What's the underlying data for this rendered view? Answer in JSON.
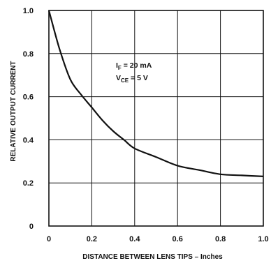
{
  "chart_data": {
    "type": "line",
    "xlabel": "DISTANCE BETWEEN LENS TIPS – Inches",
    "ylabel": "RELATIVE OUTPUT CURRENT",
    "xlim": [
      0,
      1.0
    ],
    "ylim": [
      0,
      1.0
    ],
    "x_ticks": [
      0,
      0.2,
      0.4,
      0.6,
      0.8,
      1.0
    ],
    "x_tick_labels": [
      "0",
      "0.2",
      "0.4",
      "0.6",
      "0.8",
      "1.0"
    ],
    "y_ticks": [
      0,
      0.2,
      0.4,
      0.6,
      0.8,
      1.0
    ],
    "y_tick_labels": [
      "0",
      "0.2",
      "0.4",
      "0.6",
      "0.8",
      "1.0"
    ],
    "grid": true,
    "annotations": [
      {
        "label": "I",
        "sub": "F",
        "text": " = 20 mA"
      },
      {
        "label": "V",
        "sub": "CE",
        "text": " = 5 V"
      }
    ],
    "series": [
      {
        "x": [
          0,
          0.05,
          0.1,
          0.15,
          0.2,
          0.25,
          0.3,
          0.35,
          0.4,
          0.5,
          0.6,
          0.7,
          0.8,
          0.9,
          1.0
        ],
        "y": [
          1.0,
          0.82,
          0.68,
          0.61,
          0.55,
          0.49,
          0.44,
          0.4,
          0.36,
          0.32,
          0.28,
          0.26,
          0.24,
          0.235,
          0.23
        ]
      }
    ],
    "colors": {
      "line": "#111111",
      "grid": "#111111",
      "background": "#ffffff"
    }
  }
}
